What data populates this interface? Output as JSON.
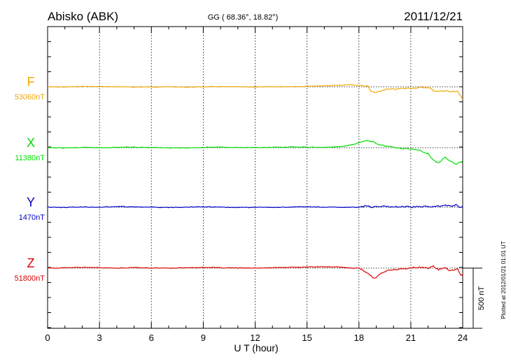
{
  "header": {
    "station": "Abisko (ABK)",
    "coords": "GG ( 68.36°,  18.82°)",
    "date": "2011/12/21"
  },
  "side_note": "Plotted at 2012/01/21 01:01 UT",
  "scale_label": "500 nT",
  "colors": {
    "F": "#f0a800",
    "X": "#00dd00",
    "Y": "#0000cc",
    "Z": "#dd0000",
    "axis": "#000000"
  },
  "chart_data": {
    "type": "line",
    "xlabel": "U T (hour)",
    "xlim": [
      0,
      24
    ],
    "x_ticks": [
      0,
      3,
      6,
      9,
      12,
      15,
      18,
      21,
      24
    ],
    "x_tick_labels": [
      "0",
      "3",
      "6",
      "9",
      "12",
      "15",
      "18",
      "21",
      "24"
    ],
    "y_unit": "nT",
    "y_scale_bar_nT": 500,
    "series": [
      {
        "name": "F",
        "baseline_label": "53060nT",
        "baseline_nT": 53060,
        "x": [
          0,
          1,
          2,
          3,
          4,
          5,
          6,
          7,
          8,
          9,
          10,
          11,
          12,
          13,
          14,
          15,
          16,
          17,
          17.5,
          18,
          18.5,
          18.7,
          19,
          19.5,
          20,
          20.5,
          21,
          21.5,
          22,
          22.3,
          22.6,
          23,
          23.3,
          23.7,
          24
        ],
        "values": [
          53060,
          53058,
          53063,
          53062,
          53060,
          53058,
          53059,
          53060,
          53057,
          53060,
          53061,
          53060,
          53058,
          53060,
          53062,
          53064,
          53068,
          53072,
          53078,
          53070,
          53065,
          53020,
          53010,
          53038,
          53040,
          53045,
          53050,
          53052,
          53055,
          53030,
          53022,
          53028,
          53018,
          53025,
          52955
        ]
      },
      {
        "name": "X",
        "baseline_label": "11380nT",
        "baseline_nT": 11380,
        "x": [
          0,
          1,
          2,
          3,
          4,
          5,
          6,
          7,
          8,
          9,
          10,
          11,
          12,
          13,
          14,
          15,
          16,
          17,
          17.5,
          18,
          18.5,
          18.8,
          19.2,
          19.5,
          20,
          20.5,
          21,
          21.5,
          22,
          22.3,
          22.6,
          23,
          23.3,
          23.6,
          24
        ],
        "values": [
          11380,
          11378,
          11382,
          11380,
          11383,
          11385,
          11381,
          11380,
          11378,
          11383,
          11385,
          11382,
          11380,
          11382,
          11386,
          11384,
          11382,
          11390,
          11402,
          11420,
          11440,
          11430,
          11405,
          11395,
          11385,
          11375,
          11370,
          11360,
          11330,
          11280,
          11250,
          11300,
          11270,
          11240,
          11270
        ]
      },
      {
        "name": "Y",
        "baseline_label": "1470nT",
        "baseline_nT": 1470,
        "x": [
          0,
          1,
          2,
          3,
          4,
          5,
          6,
          7,
          8,
          9,
          10,
          11,
          12,
          13,
          14,
          15,
          16,
          17,
          18,
          18.5,
          18.7,
          19,
          19.5,
          20,
          20.5,
          21,
          21.5,
          22,
          22.5,
          23,
          23.3,
          23.6,
          23.8,
          24
        ],
        "values": [
          1470,
          1468,
          1472,
          1470,
          1475,
          1472,
          1470,
          1468,
          1471,
          1473,
          1470,
          1467,
          1469,
          1468,
          1471,
          1473,
          1470,
          1469,
          1470,
          1482,
          1468,
          1473,
          1478,
          1472,
          1476,
          1472,
          1474,
          1476,
          1477,
          1484,
          1480,
          1488,
          1470,
          1476
        ]
      },
      {
        "name": "Z",
        "baseline_label": "51800nT",
        "baseline_nT": 51800,
        "x": [
          0,
          1,
          2,
          3,
          4,
          5,
          6,
          7,
          8,
          9,
          10,
          11,
          12,
          13,
          14,
          15,
          16,
          17,
          17.5,
          18,
          18.5,
          18.8,
          19,
          19.3,
          19.8,
          20.3,
          21,
          21.5,
          22,
          22.3,
          22.6,
          23,
          23.3,
          23.7,
          23.9,
          24
        ],
        "values": [
          51800,
          51802,
          51806,
          51803,
          51800,
          51804,
          51801,
          51800,
          51803,
          51806,
          51803,
          51801,
          51800,
          51803,
          51806,
          51809,
          51811,
          51808,
          51800,
          51800,
          51760,
          51725,
          51720,
          51760,
          51785,
          51792,
          51802,
          51805,
          51800,
          51815,
          51788,
          51800,
          51776,
          51796,
          51745,
          51735
        ]
      }
    ]
  }
}
